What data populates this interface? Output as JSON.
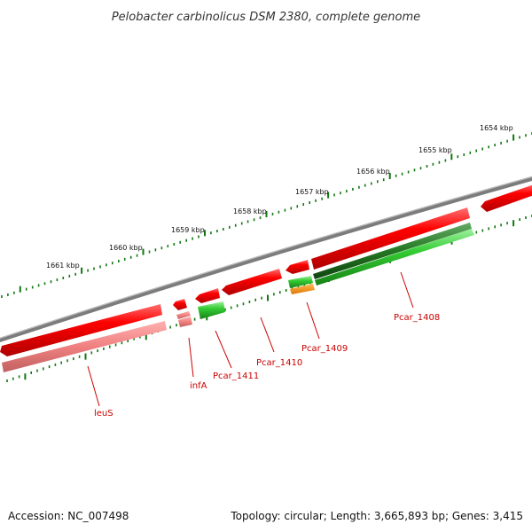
{
  "title": "Pelobacter carbinolicus DSM 2380, complete genome",
  "footer": {
    "accession": "Accession: NC_007498",
    "summary": "Topology: circular; Length: 3,665,893 bp; Genes: 3,415"
  },
  "colors": {
    "backbone": "#858585",
    "reverse_gene": "#ee1111",
    "reverse_feature": "#f08c8c",
    "forward_gene": "#22bb22",
    "forward_feature_dark": "#227722",
    "misc_feature": "#ee8800",
    "ticks": "#117711",
    "label_leader": "#cc0000"
  },
  "scale": {
    "unit": "kbp",
    "labels": [
      "1654 kbp",
      "1655 kbp",
      "1656 kbp",
      "1657 kbp",
      "1658 kbp",
      "1659 kbp",
      "1660 kbp",
      "1661 kbp"
    ]
  },
  "gene_labels": [
    "leuS",
    "infA",
    "Pcar_1411",
    "Pcar_1410",
    "Pcar_1409",
    "Pcar_1408"
  ]
}
